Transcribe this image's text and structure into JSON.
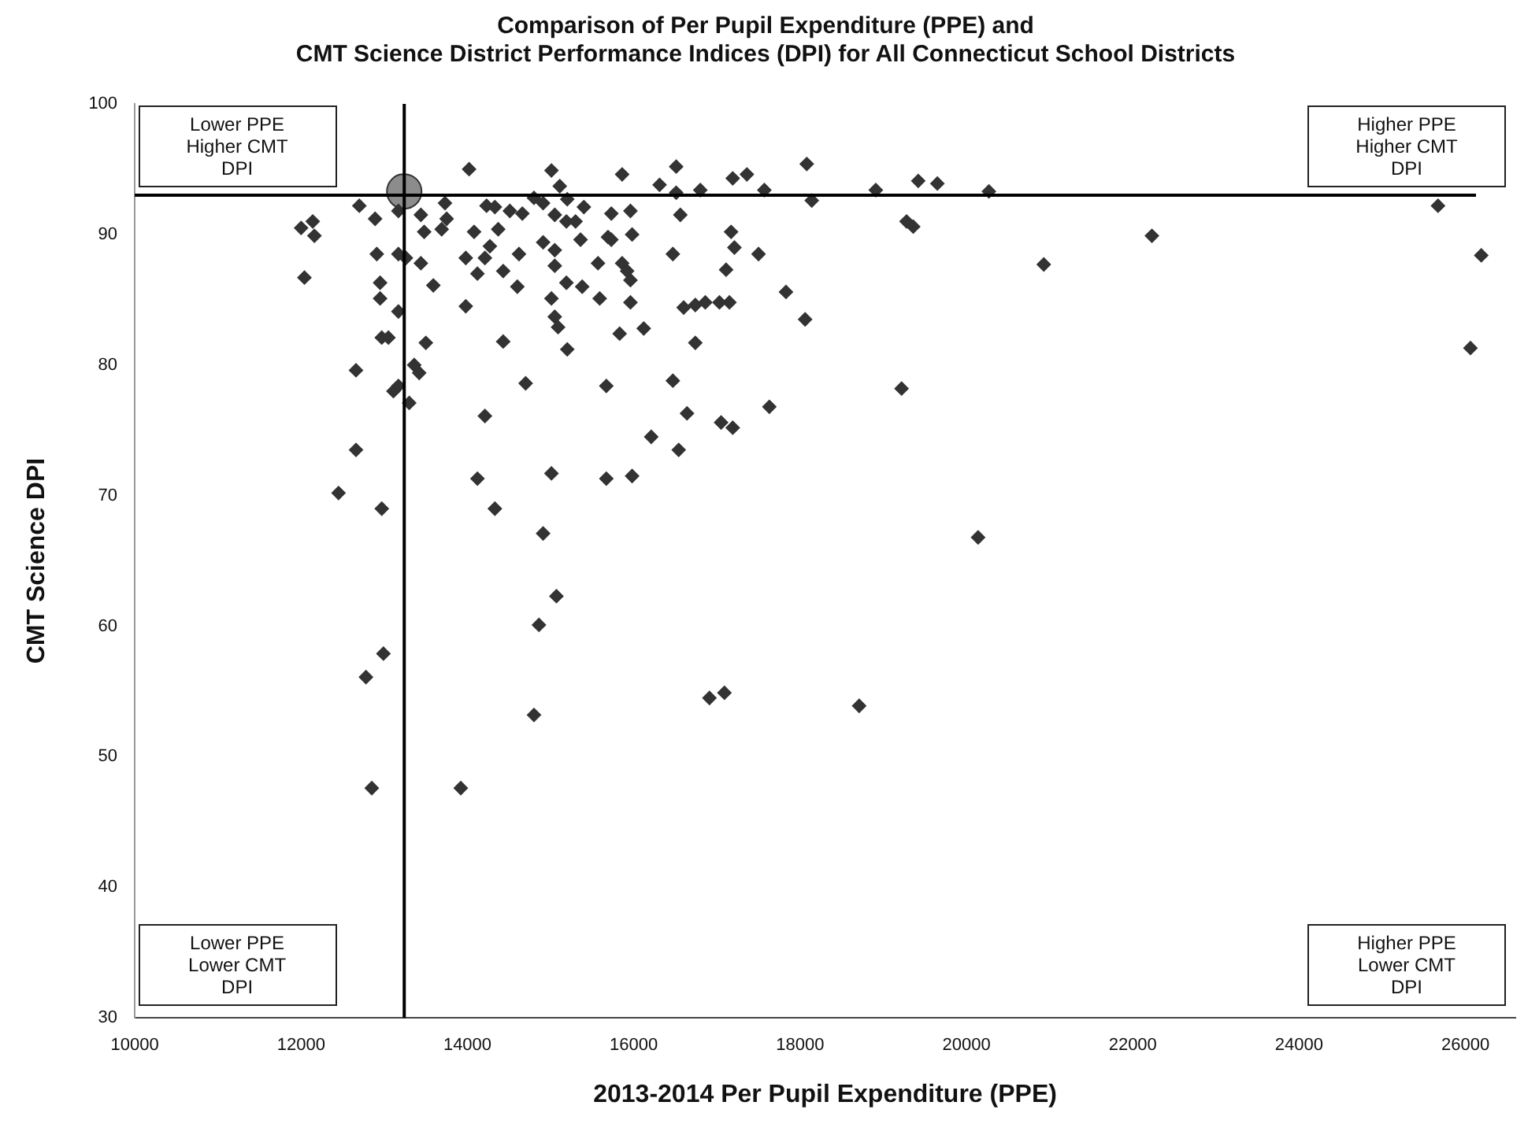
{
  "chart_data": {
    "type": "scatter",
    "title": "Comparison of Per Pupil Expenditure (PPE) and\nCMT Science District Performance Indices (DPI) for All Connecticut School Districts",
    "xlabel": "2013-2014 Per Pupil Expenditure (PPE)",
    "ylabel": "CMT Science DPI",
    "xlim": [
      10000,
      26600
    ],
    "xticks": [
      10000,
      12000,
      14000,
      16000,
      18000,
      20000,
      22000,
      24000,
      26000
    ],
    "ylim": [
      30,
      100
    ],
    "yticks": [
      30,
      40,
      50,
      60,
      70,
      80,
      90,
      100
    ],
    "grid": false,
    "legend": false,
    "marker": "diamond",
    "annotations": [
      "Lower PPE\nHigher CMT\nDPI",
      "Higher PPE\nHigher CMT\nDPI",
      "Lower PPE\nLower CMT\nDPI",
      "Higher PPE\nLower CMT\nDPI"
    ],
    "ref_lines": [
      {
        "axis": "y",
        "value": 93,
        "label": null,
        "color": "#000000"
      },
      {
        "axis": "x",
        "value": 13240,
        "label": null,
        "color": "#000000"
      }
    ],
    "series": [
      {
        "color": "#333333",
        "x": [
          14020,
          12700,
          12890,
          12000,
          12140,
          12160,
          12040,
          13170,
          13440,
          13480,
          13730,
          13750,
          13690,
          12910,
          13170,
          13260,
          13440,
          13590,
          12950,
          12950,
          13170,
          12970,
          13050,
          13500,
          12660,
          13360,
          13420,
          13110,
          13170,
          13300,
          12660,
          13980,
          14210,
          14430,
          14700,
          14080,
          13980,
          14120,
          14210,
          14270,
          14370,
          14230,
          14330,
          14510,
          14660,
          14620,
          14430,
          14600,
          14800,
          14910,
          15010,
          15110,
          15200,
          15050,
          15190,
          15300,
          15400,
          14910,
          15050,
          15360,
          15730,
          15570,
          15050,
          15190,
          15380,
          15590,
          15010,
          15050,
          15090,
          15200,
          15670,
          15730,
          15860,
          16510,
          16310,
          16510,
          16800,
          17190,
          17360,
          17570,
          18080,
          18140,
          18910,
          19420,
          19650,
          20270,
          19280,
          19360,
          15960,
          16560,
          15690,
          15980,
          16470,
          17170,
          17210,
          17500,
          17110,
          15860,
          15920,
          15960,
          15960,
          16600,
          16740,
          16860,
          17030,
          17150,
          17830,
          18060,
          15830,
          16120,
          16740,
          16470,
          17630,
          16640,
          17050,
          17190,
          16210,
          16540,
          19220,
          15010,
          15670,
          15980,
          25670,
          22230,
          20930,
          26190,
          26060,
          20140,
          12450,
          12970,
          14120,
          14330,
          14910,
          15070,
          14860,
          12990,
          12780,
          14800,
          12850,
          13920,
          16910,
          17090,
          18710
        ],
        "values": [
          95.0,
          92.2,
          91.2,
          90.5,
          91.0,
          89.9,
          86.7,
          91.8,
          91.5,
          90.2,
          92.4,
          91.2,
          90.4,
          88.5,
          88.5,
          88.2,
          87.8,
          86.1,
          86.3,
          85.1,
          84.1,
          82.1,
          82.1,
          81.7,
          79.6,
          80.0,
          79.4,
          78.0,
          78.4,
          77.1,
          73.5,
          84.5,
          76.1,
          81.8,
          78.6,
          90.2,
          88.2,
          87.0,
          88.2,
          89.1,
          90.4,
          92.2,
          92.1,
          91.8,
          91.6,
          88.5,
          87.2,
          86.0,
          92.8,
          92.4,
          94.9,
          93.7,
          92.7,
          91.5,
          91.0,
          91.0,
          92.1,
          89.4,
          88.8,
          89.6,
          89.6,
          87.8,
          87.6,
          86.3,
          86.0,
          85.1,
          85.1,
          83.7,
          82.9,
          81.2,
          78.4,
          91.6,
          94.6,
          95.2,
          93.8,
          93.2,
          93.4,
          94.3,
          94.6,
          93.4,
          95.4,
          92.6,
          93.4,
          94.1,
          93.9,
          93.3,
          91.0,
          90.6,
          91.8,
          91.5,
          89.8,
          90.0,
          88.5,
          90.2,
          89.0,
          88.5,
          87.3,
          87.8,
          87.2,
          86.5,
          84.8,
          84.4,
          84.6,
          84.8,
          84.8,
          84.8,
          85.6,
          83.5,
          82.4,
          82.8,
          81.7,
          78.8,
          76.8,
          76.3,
          75.6,
          75.2,
          74.5,
          73.5,
          78.2,
          71.7,
          71.3,
          71.5,
          92.2,
          89.9,
          87.7,
          88.4,
          81.3,
          66.8,
          70.2,
          69.0,
          71.3,
          69.0,
          67.1,
          62.3,
          60.1,
          57.9,
          56.1,
          53.2,
          47.6,
          47.6,
          54.5,
          54.9,
          53.9
        ]
      },
      {
        "color": "#8c8c8c",
        "marker": "circle",
        "x": [
          13240
        ],
        "values": [
          93.3
        ]
      }
    ]
  }
}
